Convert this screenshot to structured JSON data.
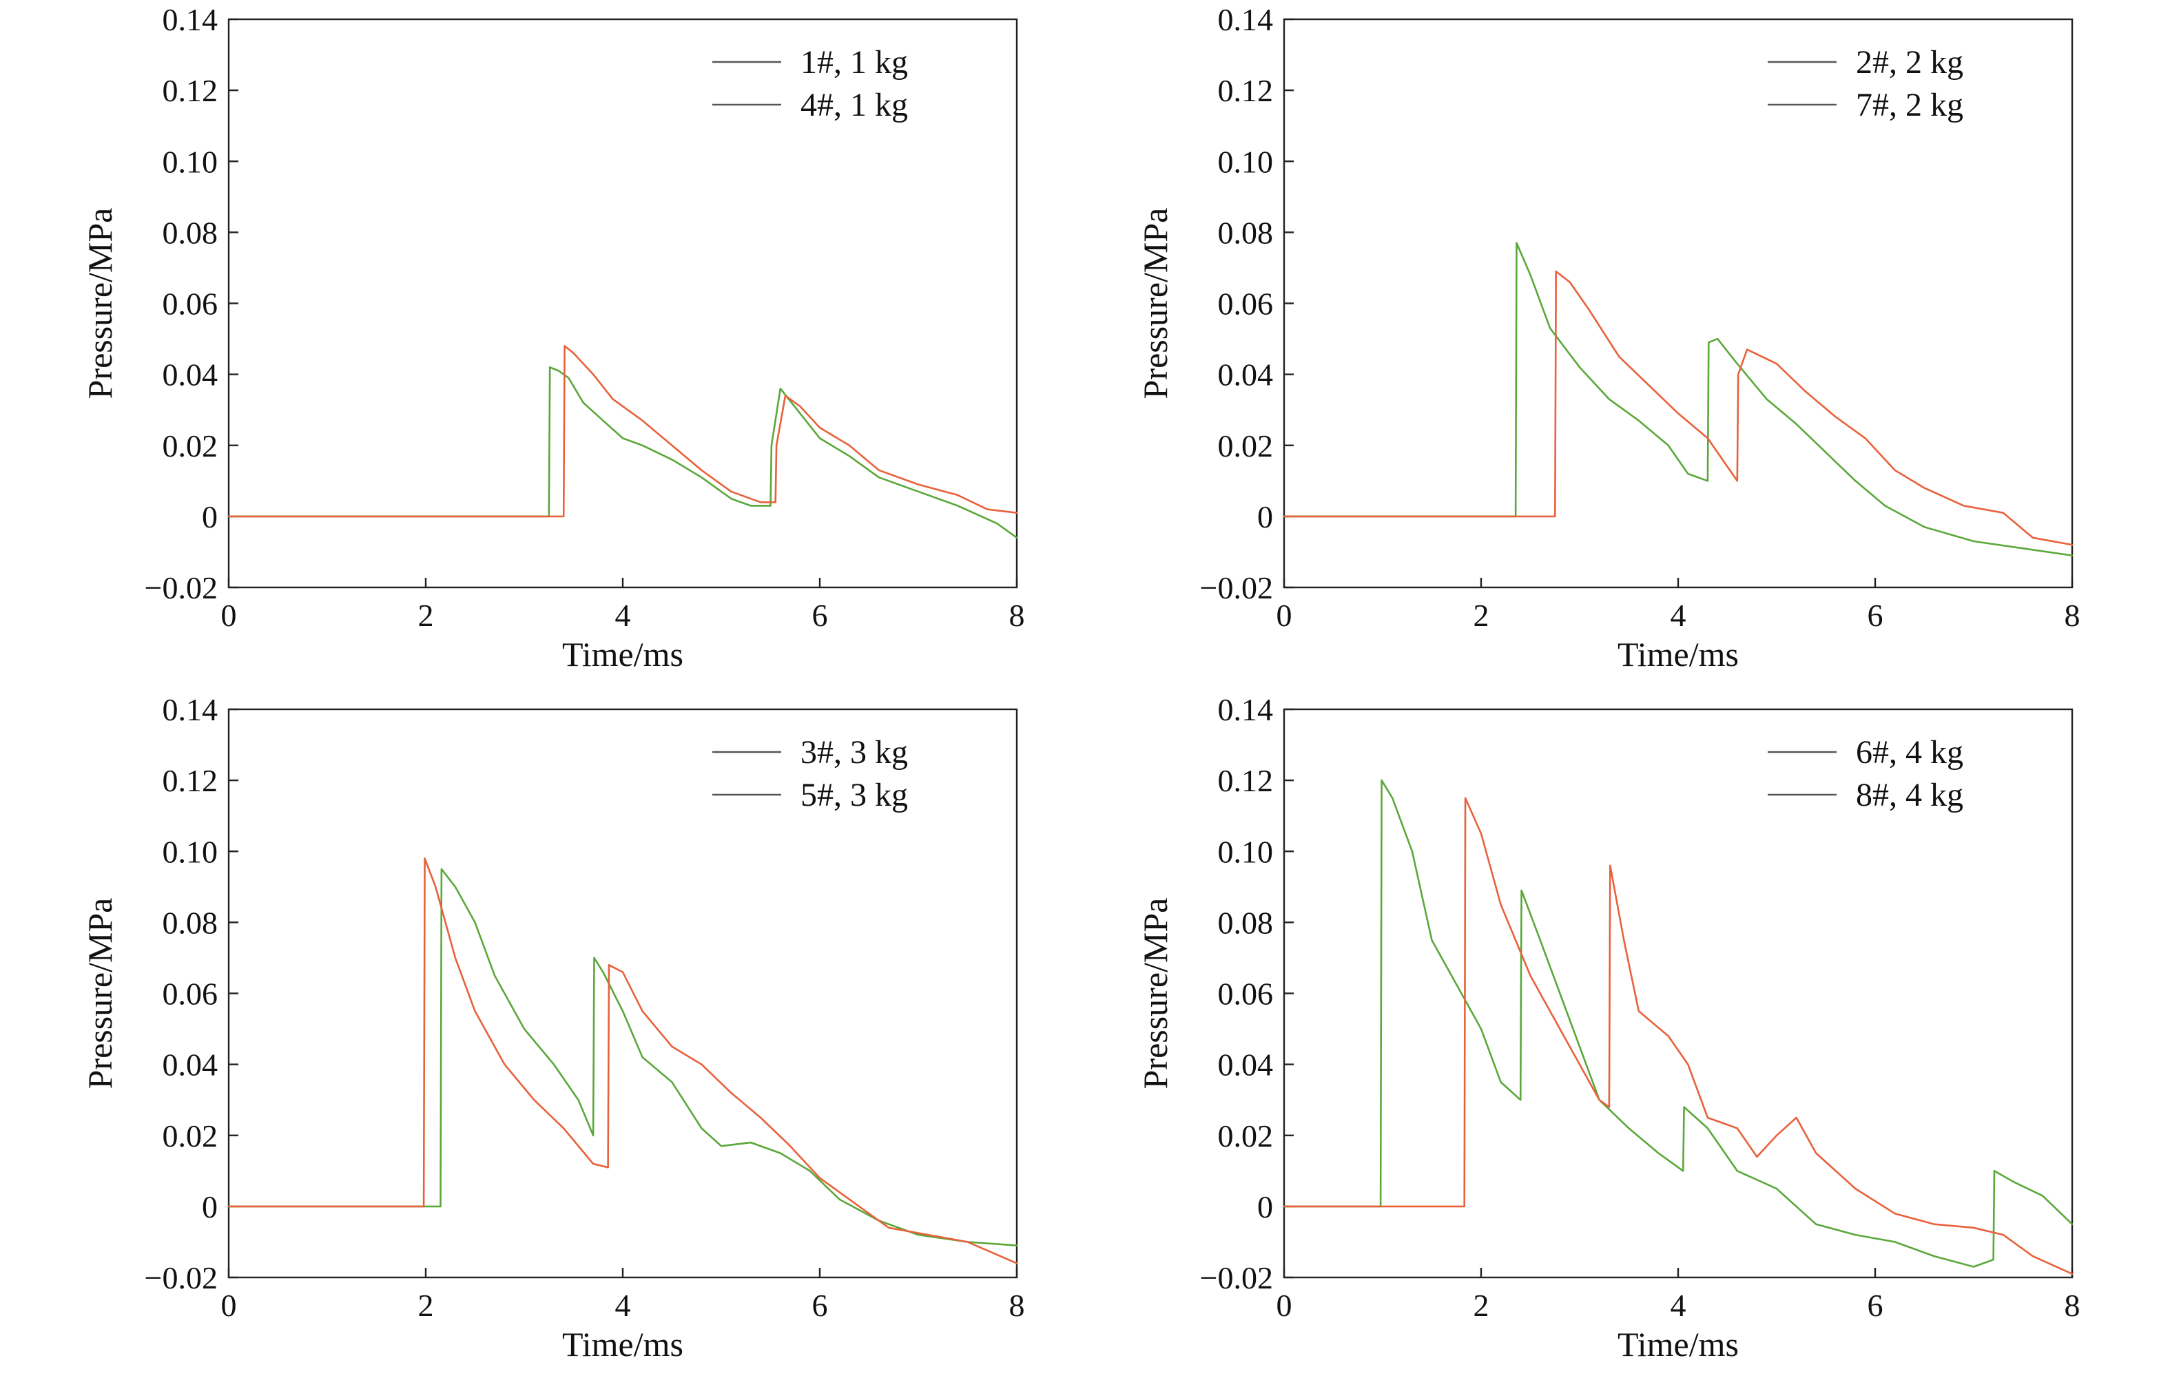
{
  "chart_data": [
    {
      "type": "line",
      "title": "",
      "xlabel": "Time/ms",
      "ylabel": "Pressure/MPa",
      "xlim": [
        0,
        8
      ],
      "ylim": [
        -0.02,
        0.14
      ],
      "xticks": [
        0,
        2,
        4,
        6,
        8
      ],
      "xtick_labels": [
        "0",
        "2",
        "4",
        "6",
        "8"
      ],
      "yticks": [
        -0.02,
        0,
        0.02,
        0.04,
        0.06,
        0.08,
        0.1,
        0.12,
        0.14
      ],
      "ytick_labels": [
        "−0.02",
        "0",
        "0.02",
        "0.04",
        "0.06",
        "0.08",
        "0.10",
        "0.12",
        "0.14"
      ],
      "grid": false,
      "legend_position": "top-right",
      "series": [
        {
          "name": "1#, 1 kg",
          "color": "#5aa83a",
          "points": [
            [
              0,
              0
            ],
            [
              1,
              0
            ],
            [
              2,
              0
            ],
            [
              3,
              0
            ],
            [
              3.25,
              0
            ],
            [
              3.26,
              0.042
            ],
            [
              3.35,
              0.041
            ],
            [
              3.45,
              0.039
            ],
            [
              3.6,
              0.032
            ],
            [
              3.8,
              0.027
            ],
            [
              4.0,
              0.022
            ],
            [
              4.2,
              0.02
            ],
            [
              4.5,
              0.016
            ],
            [
              4.8,
              0.011
            ],
            [
              5.1,
              0.005
            ],
            [
              5.3,
              0.003
            ],
            [
              5.45,
              0.003
            ],
            [
              5.5,
              0.003
            ],
            [
              5.51,
              0.02
            ],
            [
              5.6,
              0.036
            ],
            [
              5.8,
              0.029
            ],
            [
              6.0,
              0.022
            ],
            [
              6.3,
              0.017
            ],
            [
              6.6,
              0.011
            ],
            [
              7.0,
              0.007
            ],
            [
              7.4,
              0.003
            ],
            [
              7.8,
              -0.002
            ],
            [
              8.0,
              -0.006
            ]
          ]
        },
        {
          "name": "4#, 1 kg",
          "color": "#e8613a",
          "points": [
            [
              0,
              0
            ],
            [
              1,
              0
            ],
            [
              2,
              0
            ],
            [
              3,
              0
            ],
            [
              3.4,
              0
            ],
            [
              3.41,
              0.048
            ],
            [
              3.5,
              0.046
            ],
            [
              3.7,
              0.04
            ],
            [
              3.9,
              0.033
            ],
            [
              4.2,
              0.027
            ],
            [
              4.5,
              0.02
            ],
            [
              4.8,
              0.013
            ],
            [
              5.1,
              0.007
            ],
            [
              5.4,
              0.004
            ],
            [
              5.55,
              0.004
            ],
            [
              5.56,
              0.02
            ],
            [
              5.65,
              0.034
            ],
            [
              5.8,
              0.031
            ],
            [
              6.0,
              0.025
            ],
            [
              6.3,
              0.02
            ],
            [
              6.6,
              0.013
            ],
            [
              7.0,
              0.009
            ],
            [
              7.4,
              0.006
            ],
            [
              7.7,
              0.002
            ],
            [
              8.0,
              0.001
            ]
          ]
        }
      ]
    },
    {
      "type": "line",
      "title": "",
      "xlabel": "Time/ms",
      "ylabel": "Pressure/MPa",
      "xlim": [
        0,
        8
      ],
      "ylim": [
        -0.02,
        0.14
      ],
      "xticks": [
        0,
        2,
        4,
        6,
        8
      ],
      "xtick_labels": [
        "0",
        "2",
        "4",
        "6",
        "8"
      ],
      "yticks": [
        -0.02,
        0,
        0.02,
        0.04,
        0.06,
        0.08,
        0.1,
        0.12,
        0.14
      ],
      "ytick_labels": [
        "−0.02",
        "0",
        "0.02",
        "0.04",
        "0.06",
        "0.08",
        "0.10",
        "0.12",
        "0.14"
      ],
      "grid": false,
      "legend_position": "top-right",
      "series": [
        {
          "name": "2#, 2 kg",
          "color": "#5aa83a",
          "points": [
            [
              0,
              0
            ],
            [
              1,
              0
            ],
            [
              2,
              0
            ],
            [
              2.35,
              0
            ],
            [
              2.36,
              0.077
            ],
            [
              2.5,
              0.068
            ],
            [
              2.7,
              0.053
            ],
            [
              3.0,
              0.042
            ],
            [
              3.3,
              0.033
            ],
            [
              3.6,
              0.027
            ],
            [
              3.9,
              0.02
            ],
            [
              4.1,
              0.012
            ],
            [
              4.3,
              0.01
            ],
            [
              4.31,
              0.049
            ],
            [
              4.4,
              0.05
            ],
            [
              4.6,
              0.043
            ],
            [
              4.9,
              0.033
            ],
            [
              5.2,
              0.026
            ],
            [
              5.5,
              0.018
            ],
            [
              5.8,
              0.01
            ],
            [
              6.1,
              0.003
            ],
            [
              6.5,
              -0.003
            ],
            [
              7.0,
              -0.007
            ],
            [
              7.5,
              -0.009
            ],
            [
              8.0,
              -0.011
            ]
          ]
        },
        {
          "name": "7#, 2 kg",
          "color": "#e8613a",
          "points": [
            [
              0,
              0
            ],
            [
              1,
              0
            ],
            [
              2,
              0
            ],
            [
              2.75,
              0
            ],
            [
              2.76,
              0.069
            ],
            [
              2.9,
              0.066
            ],
            [
              3.1,
              0.058
            ],
            [
              3.4,
              0.045
            ],
            [
              3.7,
              0.037
            ],
            [
              4.0,
              0.029
            ],
            [
              4.3,
              0.022
            ],
            [
              4.6,
              0.01
            ],
            [
              4.61,
              0.04
            ],
            [
              4.7,
              0.047
            ],
            [
              5.0,
              0.043
            ],
            [
              5.3,
              0.035
            ],
            [
              5.6,
              0.028
            ],
            [
              5.9,
              0.022
            ],
            [
              6.2,
              0.013
            ],
            [
              6.5,
              0.008
            ],
            [
              6.9,
              0.003
            ],
            [
              7.3,
              0.001
            ],
            [
              7.6,
              -0.006
            ],
            [
              8.0,
              -0.008
            ]
          ]
        }
      ]
    },
    {
      "type": "line",
      "title": "",
      "xlabel": "Time/ms",
      "ylabel": "Pressure/MPa",
      "xlim": [
        0,
        8
      ],
      "ylim": [
        -0.02,
        0.14
      ],
      "xticks": [
        0,
        2,
        4,
        6,
        8
      ],
      "xtick_labels": [
        "0",
        "2",
        "4",
        "6",
        "8"
      ],
      "yticks": [
        -0.02,
        0,
        0.02,
        0.04,
        0.06,
        0.08,
        0.1,
        0.12,
        0.14
      ],
      "ytick_labels": [
        "−0.02",
        "0",
        "0.02",
        "0.04",
        "0.06",
        "0.08",
        "0.10",
        "0.12",
        "0.14"
      ],
      "grid": false,
      "legend_position": "top-right",
      "series": [
        {
          "name": "3#, 3 kg",
          "color": "#5aa83a",
          "points": [
            [
              0,
              0
            ],
            [
              1,
              0
            ],
            [
              2.1,
              0
            ],
            [
              2.15,
              0
            ],
            [
              2.16,
              0.095
            ],
            [
              2.3,
              0.09
            ],
            [
              2.5,
              0.08
            ],
            [
              2.7,
              0.065
            ],
            [
              3.0,
              0.05
            ],
            [
              3.3,
              0.04
            ],
            [
              3.55,
              0.03
            ],
            [
              3.7,
              0.02
            ],
            [
              3.71,
              0.07
            ],
            [
              3.8,
              0.066
            ],
            [
              4.0,
              0.055
            ],
            [
              4.2,
              0.042
            ],
            [
              4.5,
              0.035
            ],
            [
              4.8,
              0.022
            ],
            [
              5.0,
              0.017
            ],
            [
              5.3,
              0.018
            ],
            [
              5.6,
              0.015
            ],
            [
              5.9,
              0.01
            ],
            [
              6.2,
              0.002
            ],
            [
              6.6,
              -0.004
            ],
            [
              7.0,
              -0.008
            ],
            [
              7.5,
              -0.01
            ],
            [
              8.0,
              -0.011
            ]
          ]
        },
        {
          "name": "5#, 3 kg",
          "color": "#e8613a",
          "points": [
            [
              0,
              0
            ],
            [
              1,
              0
            ],
            [
              1.98,
              0
            ],
            [
              1.99,
              0.098
            ],
            [
              2.1,
              0.09
            ],
            [
              2.3,
              0.07
            ],
            [
              2.5,
              0.055
            ],
            [
              2.8,
              0.04
            ],
            [
              3.1,
              0.03
            ],
            [
              3.4,
              0.022
            ],
            [
              3.7,
              0.012
            ],
            [
              3.85,
              0.011
            ],
            [
              3.86,
              0.068
            ],
            [
              4.0,
              0.066
            ],
            [
              4.2,
              0.055
            ],
            [
              4.5,
              0.045
            ],
            [
              4.8,
              0.04
            ],
            [
              5.1,
              0.032
            ],
            [
              5.4,
              0.025
            ],
            [
              5.7,
              0.017
            ],
            [
              6.0,
              0.008
            ],
            [
              6.3,
              0.002
            ],
            [
              6.7,
              -0.006
            ],
            [
              7.1,
              -0.008
            ],
            [
              7.5,
              -0.01
            ],
            [
              8.0,
              -0.016
            ]
          ]
        }
      ]
    },
    {
      "type": "line",
      "title": "",
      "xlabel": "Time/ms",
      "ylabel": "Pressure/MPa",
      "xlim": [
        0,
        8
      ],
      "ylim": [
        -0.02,
        0.14
      ],
      "xticks": [
        0,
        2,
        4,
        6,
        8
      ],
      "xtick_labels": [
        "0",
        "2",
        "4",
        "6",
        "8"
      ],
      "yticks": [
        -0.02,
        0,
        0.02,
        0.04,
        0.06,
        0.08,
        0.1,
        0.12,
        0.14
      ],
      "ytick_labels": [
        "−0.02",
        "0",
        "0.02",
        "0.04",
        "0.06",
        "0.08",
        "0.10",
        "0.12",
        "0.14"
      ],
      "grid": false,
      "legend_position": "top-right",
      "series": [
        {
          "name": "6#, 4 kg",
          "color": "#5aa83a",
          "points": [
            [
              0,
              0
            ],
            [
              0.98,
              0
            ],
            [
              0.99,
              0.12
            ],
            [
              1.1,
              0.115
            ],
            [
              1.3,
              0.1
            ],
            [
              1.5,
              0.075
            ],
            [
              1.8,
              0.06
            ],
            [
              2.0,
              0.05
            ],
            [
              2.2,
              0.035
            ],
            [
              2.4,
              0.03
            ],
            [
              2.41,
              0.089
            ],
            [
              2.6,
              0.075
            ],
            [
              2.8,
              0.06
            ],
            [
              3.0,
              0.045
            ],
            [
              3.2,
              0.03
            ],
            [
              3.5,
              0.022
            ],
            [
              3.8,
              0.015
            ],
            [
              4.05,
              0.01
            ],
            [
              4.06,
              0.028
            ],
            [
              4.3,
              0.022
            ],
            [
              4.6,
              0.01
            ],
            [
              5.0,
              0.005
            ],
            [
              5.4,
              -0.005
            ],
            [
              5.8,
              -0.008
            ],
            [
              6.2,
              -0.01
            ],
            [
              6.6,
              -0.014
            ],
            [
              7.0,
              -0.017
            ],
            [
              7.2,
              -0.015
            ],
            [
              7.21,
              0.01
            ],
            [
              7.4,
              0.007
            ],
            [
              7.7,
              0.003
            ],
            [
              8.0,
              -0.005
            ]
          ]
        },
        {
          "name": "8#, 4 kg",
          "color": "#e8613a",
          "points": [
            [
              0,
              0
            ],
            [
              1,
              0
            ],
            [
              1.83,
              0
            ],
            [
              1.84,
              0.115
            ],
            [
              2.0,
              0.105
            ],
            [
              2.2,
              0.085
            ],
            [
              2.5,
              0.065
            ],
            [
              2.8,
              0.05
            ],
            [
              3.0,
              0.04
            ],
            [
              3.2,
              0.03
            ],
            [
              3.3,
              0.028
            ],
            [
              3.31,
              0.096
            ],
            [
              3.45,
              0.075
            ],
            [
              3.6,
              0.055
            ],
            [
              3.9,
              0.048
            ],
            [
              4.1,
              0.04
            ],
            [
              4.3,
              0.025
            ],
            [
              4.6,
              0.022
            ],
            [
              4.8,
              0.014
            ],
            [
              5.0,
              0.02
            ],
            [
              5.2,
              0.025
            ],
            [
              5.4,
              0.015
            ],
            [
              5.8,
              0.005
            ],
            [
              6.2,
              -0.002
            ],
            [
              6.6,
              -0.005
            ],
            [
              7.0,
              -0.006
            ],
            [
              7.3,
              -0.008
            ],
            [
              7.6,
              -0.014
            ],
            [
              8.0,
              -0.019
            ]
          ]
        }
      ]
    }
  ]
}
